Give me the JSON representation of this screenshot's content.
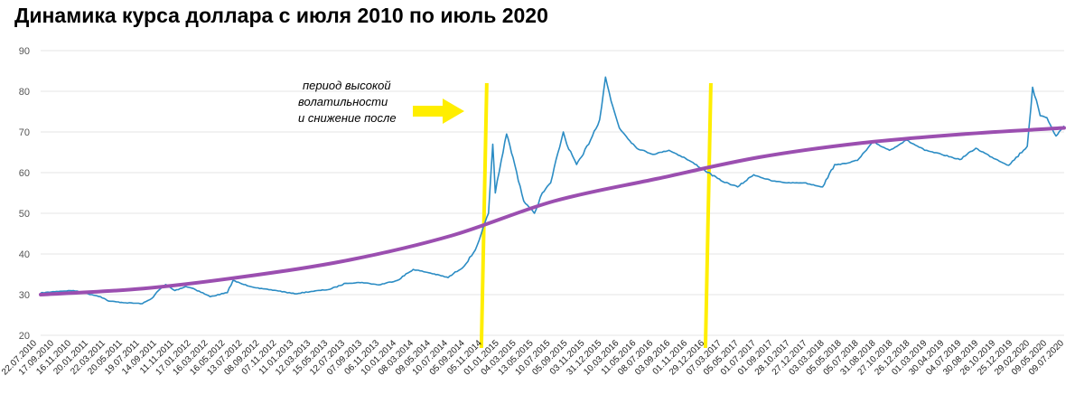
{
  "chart_data": {
    "type": "line",
    "title": "Динамика курса доллара с июля 2010 по июль 2020",
    "xlabel": "",
    "ylabel": "",
    "ylim": [
      20,
      90
    ],
    "yticks": [
      20,
      30,
      40,
      50,
      60,
      70,
      80,
      90
    ],
    "grid": true,
    "x_tick_labels": [
      "22.07.2010",
      "17.09.2010",
      "16.11.2010",
      "20.01.2011",
      "22.03.2011",
      "20.05.2011",
      "19.07.2011",
      "14.09.2011",
      "11.11.2011",
      "17.01.2012",
      "16.03.2012",
      "16.05.2012",
      "13.07.2012",
      "08.09.2012",
      "07.11.2012",
      "11.01.2013",
      "12.03.2013",
      "15.05.2013",
      "12.07.2013",
      "07.09.2013",
      "06.11.2013",
      "10.01.2014",
      "08.03.2014",
      "09.05.2014",
      "10.07.2014",
      "05.09.2014",
      "05.11.2014",
      "01.01.2015",
      "04.03.2015",
      "13.05.2015",
      "10.07.2015",
      "05.09.2015",
      "03.11.2015",
      "31.12.2015",
      "10.03.2016",
      "11.05.2016",
      "08.07.2016",
      "03.09.2016",
      "01.11.2016",
      "29.12.2016",
      "07.03.2017",
      "05.05.2017",
      "01.07.2017",
      "01.09.2017",
      "28.10.2017",
      "27.12.2017",
      "03.03.2018",
      "05.05.2018",
      "05.07.2018",
      "31.08.2018",
      "27.10.2018",
      "26.12.2018",
      "01.03.2019",
      "30.04.2019",
      "04.07.2019",
      "30.08.2019",
      "26.10.2019",
      "25.12.2019",
      "29.02.2020",
      "09.05.2020",
      "09.07.2020"
    ],
    "series": [
      {
        "role": "usd-rate",
        "color": "#2b8cc4",
        "points": [
          [
            "2010-07-22",
            30.4
          ],
          [
            "2010-09-17",
            30.8
          ],
          [
            "2010-11-16",
            31.0
          ],
          [
            "2011-01-20",
            30.0
          ],
          [
            "2011-02-20",
            29.5
          ],
          [
            "2011-03-22",
            28.4
          ],
          [
            "2011-05-20",
            28.0
          ],
          [
            "2011-07-19",
            27.8
          ],
          [
            "2011-08-20",
            29.0
          ],
          [
            "2011-09-14",
            31.0
          ],
          [
            "2011-10-10",
            32.5
          ],
          [
            "2011-11-11",
            31.0
          ],
          [
            "2011-12-20",
            32.0
          ],
          [
            "2012-01-17",
            31.5
          ],
          [
            "2012-03-16",
            29.5
          ],
          [
            "2012-05-16",
            30.5
          ],
          [
            "2012-06-05",
            33.5
          ],
          [
            "2012-07-13",
            32.5
          ],
          [
            "2012-09-08",
            31.5
          ],
          [
            "2012-11-07",
            31.0
          ],
          [
            "2013-01-11",
            30.2
          ],
          [
            "2013-03-12",
            30.8
          ],
          [
            "2013-05-15",
            31.3
          ],
          [
            "2013-07-12",
            32.8
          ],
          [
            "2013-09-07",
            33.0
          ],
          [
            "2013-11-06",
            32.4
          ],
          [
            "2014-01-10",
            33.5
          ],
          [
            "2014-03-08",
            36.2
          ],
          [
            "2014-05-09",
            35.3
          ],
          [
            "2014-07-10",
            34.2
          ],
          [
            "2014-09-05",
            37.0
          ],
          [
            "2014-10-15",
            41.0
          ],
          [
            "2014-11-05",
            45.0
          ],
          [
            "2014-12-01",
            50.0
          ],
          [
            "2014-12-16",
            67.0
          ],
          [
            "2014-12-25",
            55.0
          ],
          [
            "2015-01-15",
            63.0
          ],
          [
            "2015-02-03",
            69.5
          ],
          [
            "2015-03-04",
            62.0
          ],
          [
            "2015-04-05",
            53.0
          ],
          [
            "2015-05-13",
            50.0
          ],
          [
            "2015-06-10",
            55.0
          ],
          [
            "2015-07-10",
            57.5
          ],
          [
            "2015-08-24",
            70.0
          ],
          [
            "2015-09-05",
            67.0
          ],
          [
            "2015-10-10",
            62.0
          ],
          [
            "2015-11-03",
            64.5
          ],
          [
            "2015-12-31",
            73.0
          ],
          [
            "2016-01-21",
            83.5
          ],
          [
            "2016-02-10",
            77.5
          ],
          [
            "2016-03-10",
            71.0
          ],
          [
            "2016-05-11",
            66.0
          ],
          [
            "2016-07-08",
            64.5
          ],
          [
            "2016-09-03",
            65.5
          ],
          [
            "2016-11-01",
            63.5
          ],
          [
            "2016-12-29",
            61.0
          ],
          [
            "2017-03-07",
            58.0
          ],
          [
            "2017-05-05",
            56.5
          ],
          [
            "2017-07-01",
            59.5
          ],
          [
            "2017-09-01",
            58.0
          ],
          [
            "2017-10-28",
            57.5
          ],
          [
            "2017-12-27",
            57.5
          ],
          [
            "2018-03-03",
            56.5
          ],
          [
            "2018-04-15",
            62.0
          ],
          [
            "2018-05-05",
            62.0
          ],
          [
            "2018-07-05",
            63.0
          ],
          [
            "2018-08-31",
            67.5
          ],
          [
            "2018-10-27",
            65.5
          ],
          [
            "2018-12-26",
            68.0
          ],
          [
            "2019-03-01",
            65.5
          ],
          [
            "2019-04-30",
            64.5
          ],
          [
            "2019-07-04",
            63.2
          ],
          [
            "2019-08-30",
            66.0
          ],
          [
            "2019-10-26",
            63.8
          ],
          [
            "2019-12-25",
            61.8
          ],
          [
            "2020-02-29",
            66.5
          ],
          [
            "2020-03-19",
            81.0
          ],
          [
            "2020-04-15",
            74.0
          ],
          [
            "2020-05-09",
            73.5
          ],
          [
            "2020-06-10",
            69.0
          ],
          [
            "2020-07-09",
            71.5
          ]
        ]
      },
      {
        "role": "trend",
        "color": "#9b4fb0",
        "points": [
          [
            "2010-07-22",
            30.0
          ],
          [
            "2011-07-22",
            31.5
          ],
          [
            "2012-07-22",
            34.5
          ],
          [
            "2013-07-22",
            38.5
          ],
          [
            "2014-07-22",
            44.5
          ],
          [
            "2015-07-22",
            53.0
          ],
          [
            "2016-07-22",
            58.5
          ],
          [
            "2017-07-22",
            63.8
          ],
          [
            "2018-07-22",
            67.3
          ],
          [
            "2019-07-22",
            69.5
          ],
          [
            "2020-07-09",
            71.0
          ]
        ]
      }
    ],
    "vertical_markers": [
      {
        "x": "2014-11-15",
        "color": "#ffee00"
      },
      {
        "x": "2017-01-20",
        "color": "#ffee00"
      }
    ],
    "annotation": {
      "lines": [
        "период высокой",
        "волатильности",
        "и снижение после"
      ],
      "arrow_color": "#ffee00"
    }
  }
}
